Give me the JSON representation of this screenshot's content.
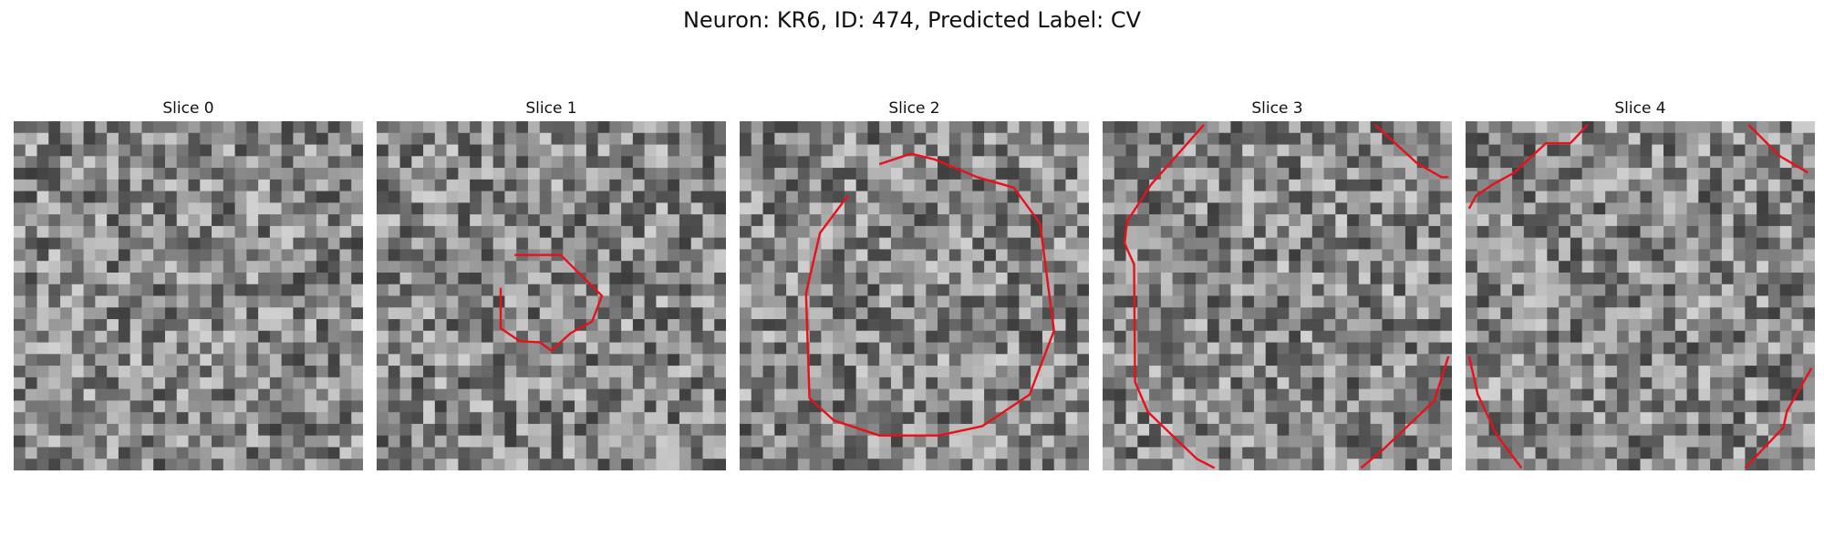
{
  "figure": {
    "title": "Neuron: KR6, ID: 474, Predicted Label: CV"
  },
  "panels": [
    {
      "title": "Slice 0",
      "seed": 11,
      "contours": []
    },
    {
      "title": "Slice 1",
      "seed": 23,
      "contours": [
        [
          [
            0.395,
            0.383
          ],
          [
            0.527,
            0.383
          ],
          [
            0.645,
            0.5
          ],
          [
            0.617,
            0.573
          ],
          [
            0.555,
            0.607
          ],
          [
            0.5,
            0.657
          ],
          [
            0.467,
            0.633
          ],
          [
            0.41,
            0.63
          ],
          [
            0.355,
            0.593
          ],
          [
            0.355,
            0.477
          ]
        ]
      ]
    },
    {
      "title": "Slice 2",
      "seed": 37,
      "contours": [
        [
          [
            0.4,
            0.123
          ],
          [
            0.49,
            0.093
          ],
          [
            0.56,
            0.11
          ],
          [
            0.68,
            0.16
          ],
          [
            0.785,
            0.19
          ],
          [
            0.86,
            0.293
          ],
          [
            0.9,
            0.6
          ],
          [
            0.83,
            0.783
          ],
          [
            0.695,
            0.873
          ],
          [
            0.57,
            0.9
          ],
          [
            0.4,
            0.9
          ],
          [
            0.27,
            0.857
          ],
          [
            0.2,
            0.793
          ],
          [
            0.19,
            0.493
          ],
          [
            0.23,
            0.32
          ],
          [
            0.31,
            0.213
          ]
        ]
      ]
    },
    {
      "title": "Slice 3",
      "seed": 53,
      "contours": [
        [
          [
            0.29,
            0.01
          ],
          [
            0.14,
            0.18
          ],
          [
            0.07,
            0.287
          ],
          [
            0.063,
            0.35
          ],
          [
            0.09,
            0.41
          ],
          [
            0.093,
            0.747
          ],
          [
            0.13,
            0.833
          ],
          [
            0.2,
            0.9
          ],
          [
            0.27,
            0.967
          ],
          [
            0.32,
            0.993
          ]
        ],
        [
          [
            0.78,
            0.01
          ],
          [
            0.9,
            0.12
          ],
          [
            0.97,
            0.16
          ],
          [
            0.99,
            0.16
          ]
        ],
        [
          [
            0.99,
            0.673
          ],
          [
            0.95,
            0.8
          ],
          [
            0.8,
            0.943
          ],
          [
            0.74,
            0.993
          ]
        ]
      ]
    },
    {
      "title": "Slice 4",
      "seed": 71,
      "contours": [
        [
          [
            0.35,
            0.01
          ],
          [
            0.3,
            0.063
          ],
          [
            0.23,
            0.063
          ],
          [
            0.14,
            0.147
          ],
          [
            0.08,
            0.18
          ],
          [
            0.03,
            0.213
          ],
          [
            0.01,
            0.25
          ]
        ],
        [
          [
            0.81,
            0.01
          ],
          [
            0.9,
            0.1
          ],
          [
            0.98,
            0.147
          ]
        ],
        [
          [
            0.01,
            0.673
          ],
          [
            0.035,
            0.783
          ],
          [
            0.09,
            0.9
          ],
          [
            0.16,
            0.993
          ]
        ],
        [
          [
            0.99,
            0.707
          ],
          [
            0.92,
            0.83
          ],
          [
            0.91,
            0.877
          ],
          [
            0.8,
            0.993
          ]
        ]
      ]
    }
  ]
}
